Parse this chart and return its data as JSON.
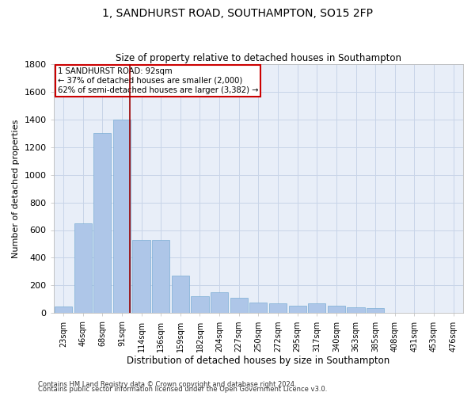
{
  "title1": "1, SANDHURST ROAD, SOUTHAMPTON, SO15 2FP",
  "title2": "Size of property relative to detached houses in Southampton",
  "xlabel": "Distribution of detached houses by size in Southampton",
  "ylabel": "Number of detached properties",
  "footnote1": "Contains HM Land Registry data © Crown copyright and database right 2024.",
  "footnote2": "Contains public sector information licensed under the Open Government Licence v3.0.",
  "annotation_line1": "1 SANDHURST ROAD: 92sqm",
  "annotation_line2": "← 37% of detached houses are smaller (2,000)",
  "annotation_line3": "62% of semi-detached houses are larger (3,382) →",
  "bar_labels": [
    "23sqm",
    "46sqm",
    "68sqm",
    "91sqm",
    "114sqm",
    "136sqm",
    "159sqm",
    "182sqm",
    "204sqm",
    "227sqm",
    "250sqm",
    "272sqm",
    "295sqm",
    "317sqm",
    "340sqm",
    "363sqm",
    "385sqm",
    "408sqm",
    "431sqm",
    "453sqm",
    "476sqm"
  ],
  "bar_values": [
    50,
    650,
    1300,
    1400,
    530,
    530,
    270,
    120,
    150,
    110,
    75,
    70,
    55,
    70,
    55,
    45,
    35,
    0,
    0,
    0,
    0
  ],
  "bar_color": "#aec6e8",
  "bar_edge_color": "#7aadd4",
  "grid_color": "#c8d4e8",
  "bg_color": "#e8eef8",
  "vline_color": "#990000",
  "annotation_box_color": "#ffffff",
  "annotation_box_edge": "#cc0000",
  "ylim": [
    0,
    1800
  ],
  "yticks": [
    0,
    200,
    400,
    600,
    800,
    1000,
    1200,
    1400,
    1600,
    1800
  ],
  "vline_x": 3.42,
  "figwidth": 6.0,
  "figheight": 5.0,
  "dpi": 100
}
